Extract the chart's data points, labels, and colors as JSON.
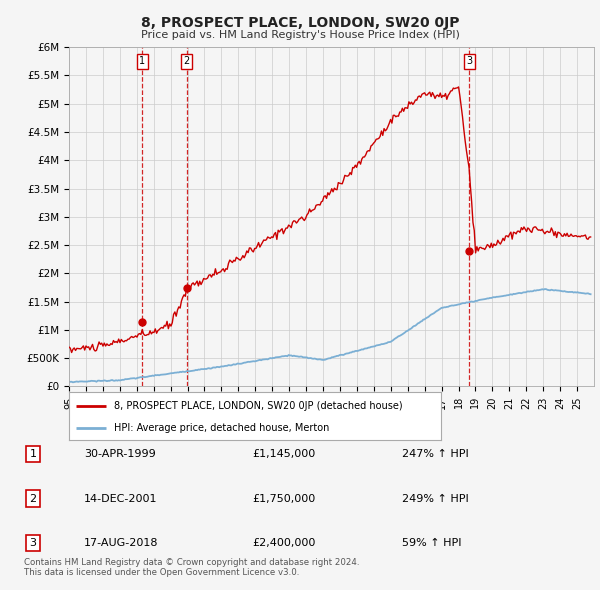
{
  "title": "8, PROSPECT PLACE, LONDON, SW20 0JP",
  "subtitle": "Price paid vs. HM Land Registry's House Price Index (HPI)",
  "hpi_label": "HPI: Average price, detached house, Merton",
  "property_label": "8, PROSPECT PLACE, LONDON, SW20 0JP (detached house)",
  "footer": "Contains HM Land Registry data © Crown copyright and database right 2024.\nThis data is licensed under the Open Government Licence v3.0.",
  "transactions": [
    {
      "num": 1,
      "date": "30-APR-1999",
      "price": "£1,145,000",
      "change": "247% ↑ HPI",
      "year": 1999.33
    },
    {
      "num": 2,
      "date": "14-DEC-2001",
      "price": "£1,750,000",
      "change": "249% ↑ HPI",
      "year": 2001.96
    },
    {
      "num": 3,
      "date": "17-AUG-2018",
      "price": "£2,400,000",
      "change": "59% ↑ HPI",
      "year": 2018.63
    }
  ],
  "trans_prices": [
    1145000,
    1750000,
    2400000
  ],
  "ylim": [
    0,
    6000000
  ],
  "yticks": [
    0,
    500000,
    1000000,
    1500000,
    2000000,
    2500000,
    3000000,
    3500000,
    4000000,
    4500000,
    5000000,
    5500000,
    6000000
  ],
  "ytick_labels": [
    "£0",
    "£500K",
    "£1M",
    "£1.5M",
    "£2M",
    "£2.5M",
    "£3M",
    "£3.5M",
    "£4M",
    "£4.5M",
    "£5M",
    "£5.5M",
    "£6M"
  ],
  "xlim": [
    1995,
    2026
  ],
  "xtick_years": [
    1995,
    1996,
    1997,
    1998,
    1999,
    2000,
    2001,
    2002,
    2003,
    2004,
    2005,
    2006,
    2007,
    2008,
    2009,
    2010,
    2011,
    2012,
    2013,
    2014,
    2015,
    2016,
    2017,
    2018,
    2019,
    2020,
    2021,
    2022,
    2023,
    2024,
    2025
  ],
  "property_color": "#cc0000",
  "hpi_color": "#7bafd4",
  "vline_color": "#cc0000",
  "background_color": "#f5f5f5",
  "grid_color": "#cccccc",
  "title_fontsize": 10,
  "subtitle_fontsize": 8
}
